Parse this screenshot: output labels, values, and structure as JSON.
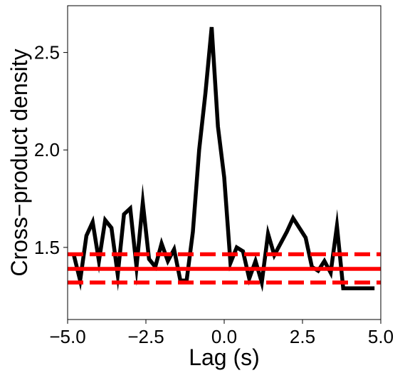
{
  "chart_data": {
    "type": "line",
    "title": "",
    "xlabel": "Lag (s)",
    "ylabel": "Cross−product density",
    "xlim": [
      -5.0,
      5.0
    ],
    "ylim": [
      1.13,
      2.74
    ],
    "grid": false,
    "x_ticks": [
      -5.0,
      -2.5,
      0.0,
      2.5,
      5.0
    ],
    "x_tick_labels": [
      "−5.0",
      "−2.5",
      "0.0",
      "2.5",
      "5.0"
    ],
    "y_ticks": [
      1.5,
      2.0,
      2.5
    ],
    "y_tick_labels": [
      "1.5",
      "2.0",
      "2.5"
    ],
    "series": [
      {
        "color": "#000000",
        "style": "solid",
        "x": [
          -4.8,
          -4.6,
          -4.4,
          -4.2,
          -4.0,
          -3.8,
          -3.6,
          -3.4,
          -3.2,
          -3.0,
          -2.8,
          -2.6,
          -2.4,
          -2.2,
          -2.0,
          -1.8,
          -1.6,
          -1.4,
          -1.2,
          -1.0,
          -0.8,
          -0.6,
          -0.4,
          -0.2,
          0.0,
          0.2,
          0.4,
          0.6,
          0.8,
          1.0,
          1.2,
          1.4,
          1.6,
          1.8,
          2.0,
          2.2,
          2.4,
          2.6,
          2.8,
          3.0,
          3.2,
          3.4,
          3.6,
          3.8,
          4.0,
          4.2,
          4.4,
          4.6,
          4.8
        ],
        "values": [
          1.46,
          1.33,
          1.56,
          1.63,
          1.43,
          1.64,
          1.6,
          1.36,
          1.67,
          1.7,
          1.4,
          1.73,
          1.44,
          1.4,
          1.52,
          1.43,
          1.49,
          1.33,
          1.33,
          1.58,
          2.0,
          2.29,
          2.63,
          2.12,
          1.86,
          1.42,
          1.5,
          1.48,
          1.34,
          1.43,
          1.32,
          1.57,
          1.46,
          1.52,
          1.58,
          1.65,
          1.6,
          1.55,
          1.4,
          1.38,
          1.43,
          1.37,
          1.61,
          1.29,
          1.29,
          1.29,
          1.29,
          1.29,
          1.29
        ]
      }
    ],
    "reference_lines": [
      {
        "y": 1.39,
        "color": "#ff0000",
        "style": "solid"
      },
      {
        "y": 1.465,
        "color": "#ff0000",
        "style": "dashed"
      },
      {
        "y": 1.32,
        "color": "#ff0000",
        "style": "dashed"
      }
    ]
  }
}
